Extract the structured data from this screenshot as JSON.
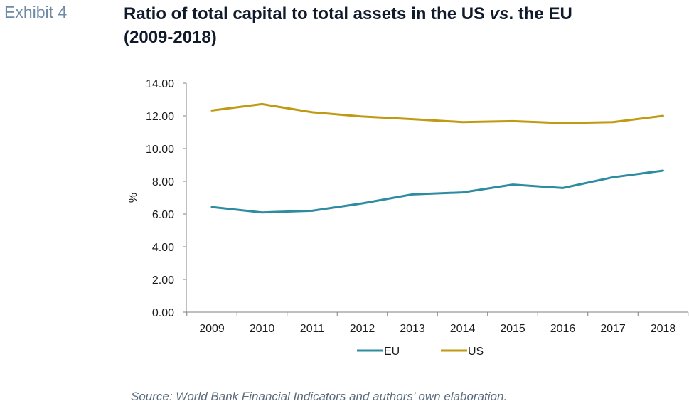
{
  "exhibit_label": "Exhibit 4",
  "title": {
    "part1": "Ratio of total capital to total assets in the US ",
    "part2": "vs",
    "part3": ". the EU",
    "line2": "(2009-2018)"
  },
  "source": "Source: World Bank Financial Indicators and authors’ own elaboration.",
  "colors": {
    "EU": "#2e8ca0",
    "US": "#c09a13",
    "axis": "#7f7f7f",
    "text": "#1a1a1a"
  },
  "chart_data": {
    "type": "line",
    "x": [
      "2009",
      "2010",
      "2011",
      "2012",
      "2013",
      "2014",
      "2015",
      "2016",
      "2017",
      "2018"
    ],
    "series": [
      {
        "name": "EU",
        "values": [
          6.43,
          6.1,
          6.2,
          6.65,
          7.2,
          7.32,
          7.8,
          7.59,
          8.25,
          8.65
        ]
      },
      {
        "name": "US",
        "values": [
          12.33,
          12.72,
          12.22,
          11.96,
          11.8,
          11.62,
          11.68,
          11.56,
          11.62,
          12.0
        ]
      }
    ],
    "ylabel": "%",
    "xlabel": "",
    "ylim": [
      0,
      14
    ],
    "yticks": [
      "0.00",
      "2.00",
      "4.00",
      "6.00",
      "8.00",
      "10.00",
      "12.00",
      "14.00"
    ],
    "grid": false,
    "legend": "bottom-center"
  }
}
